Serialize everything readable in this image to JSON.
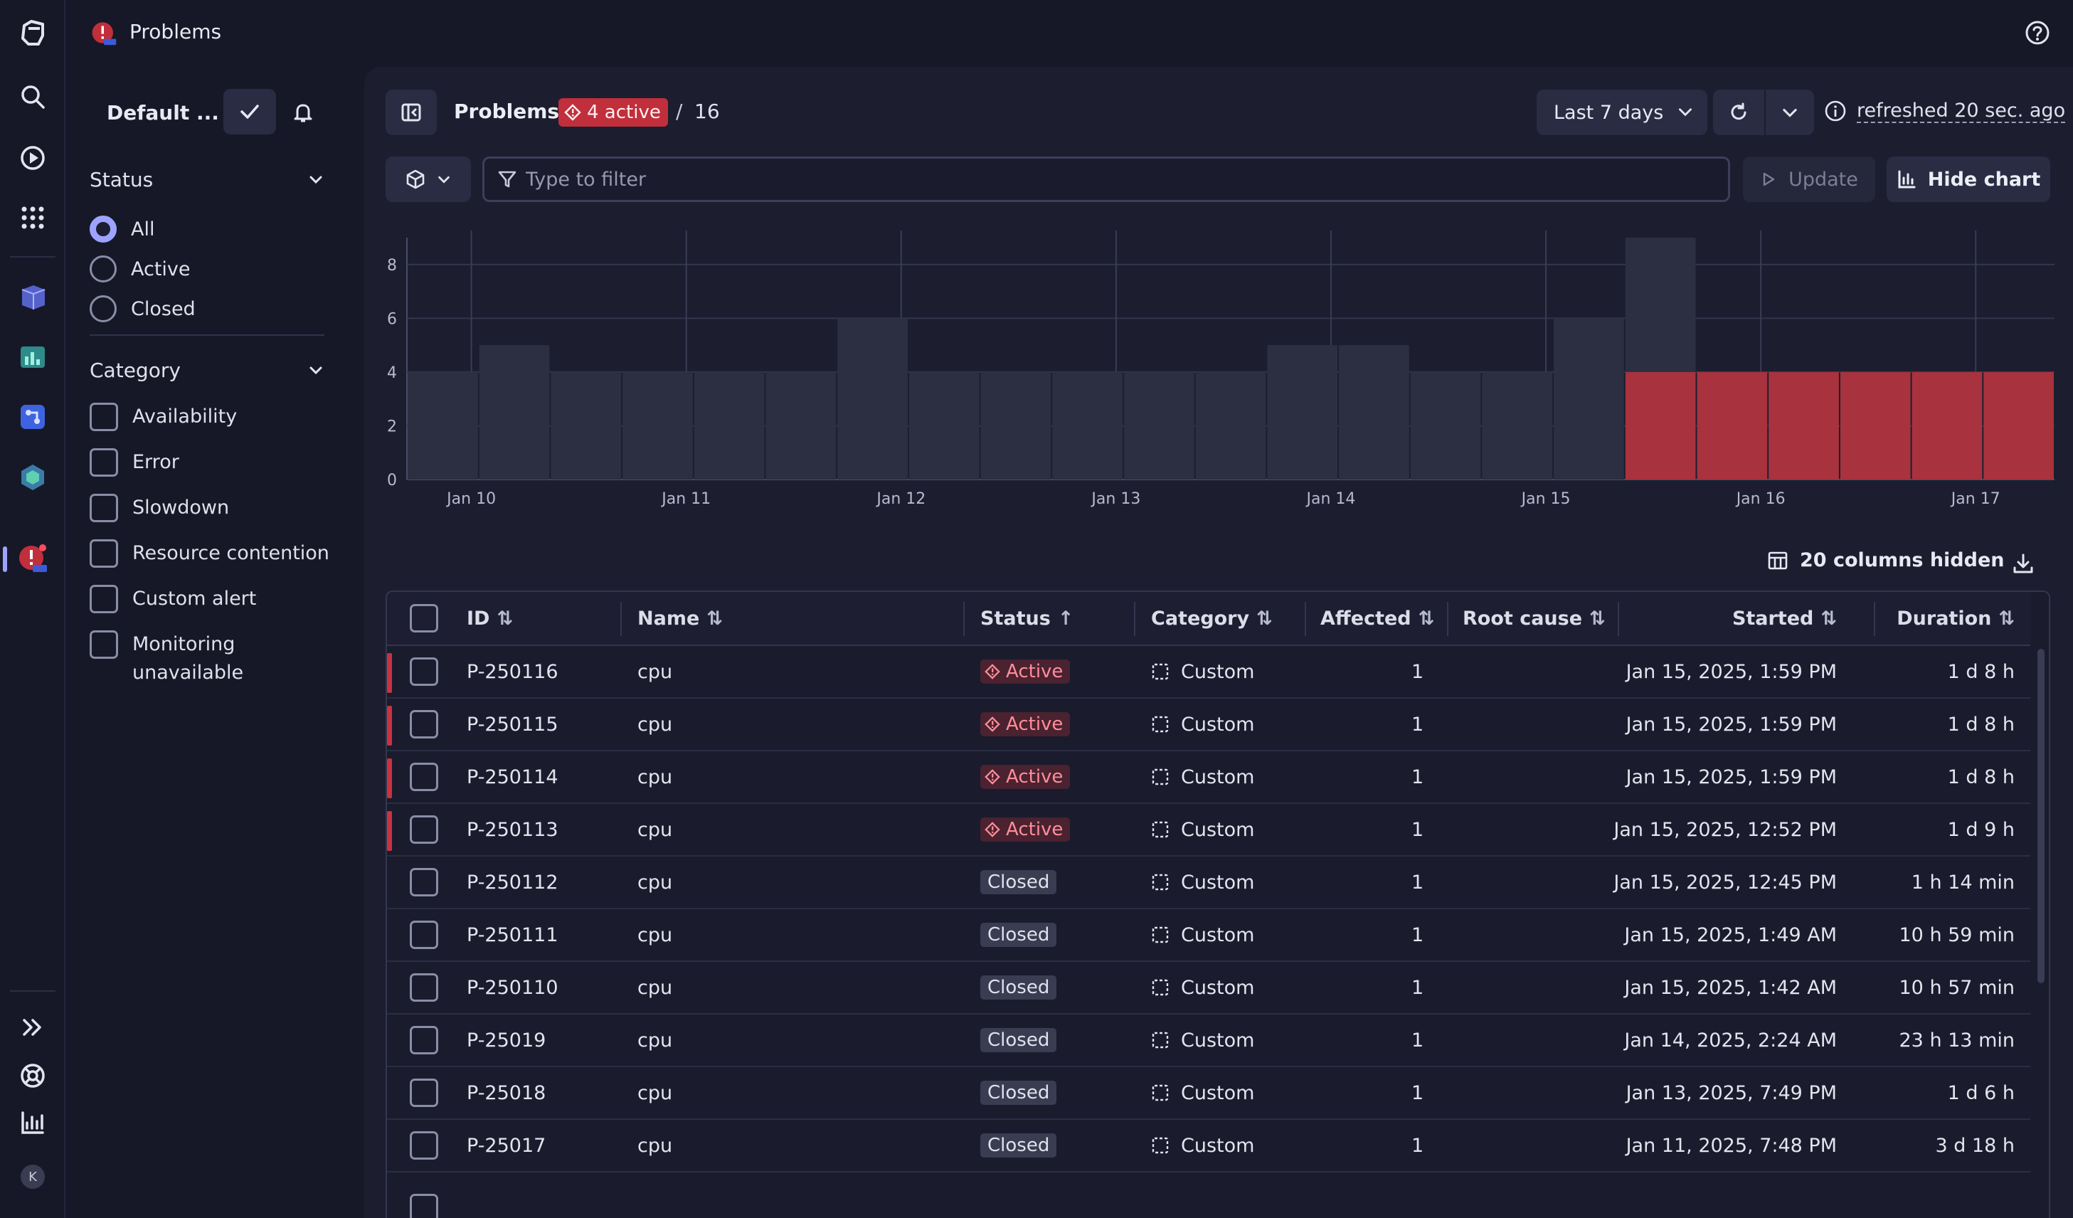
{
  "app": {
    "title": "Problems"
  },
  "sidebar": {
    "preset": "Default ...",
    "status_section": "Status",
    "status_options": [
      "All",
      "Active",
      "Closed"
    ],
    "status_selected": "All",
    "category_section": "Category",
    "category_options": [
      "Availability",
      "Error",
      "Slowdown",
      "Resource contention",
      "Custom alert",
      "Monitoring unavailable"
    ]
  },
  "header": {
    "title": "Problems",
    "active_badge": "4 active",
    "separator": "/",
    "total": "16",
    "timeframe": "Last 7 days",
    "refreshed": "refreshed 20 sec. ago"
  },
  "filter": {
    "placeholder": "Type to filter",
    "update_label": "Update",
    "hide_chart_label": "Hide chart"
  },
  "chart_data": {
    "type": "bar",
    "yticks": [
      0,
      2,
      4,
      6,
      8
    ],
    "ylim": [
      0,
      9
    ],
    "xticks": [
      "Jan 10",
      "Jan 11",
      "Jan 12",
      "Jan 13",
      "Jan 14",
      "Jan 15",
      "Jan 16",
      "Jan 17"
    ],
    "series": [
      {
        "values": [
          4,
          5,
          4,
          4,
          4,
          4,
          6,
          4,
          4,
          4,
          4,
          4,
          5,
          5,
          4,
          4,
          6,
          9,
          4,
          4,
          4,
          4,
          4
        ]
      },
      {
        "values": [
          0,
          0,
          0,
          0,
          0,
          0,
          0,
          0,
          0,
          0,
          0,
          0,
          0,
          0,
          0,
          0,
          0,
          4,
          4,
          4,
          4,
          4,
          4
        ]
      }
    ],
    "colors": {
      "total": "#2c2e42",
      "active": "#a8323e"
    }
  },
  "table": {
    "columns_hidden": "20 columns hidden",
    "headers": [
      "ID",
      "Name",
      "Status",
      "Category",
      "Affected",
      "Root cause",
      "Started",
      "Duration"
    ],
    "rows": [
      {
        "id": "P-250116",
        "name": "cpu",
        "status": "Active",
        "category": "Custom",
        "affected": "1",
        "root_cause": "",
        "started": "Jan 15, 2025, 1:59 PM",
        "duration": "1 d 8 h"
      },
      {
        "id": "P-250115",
        "name": "cpu",
        "status": "Active",
        "category": "Custom",
        "affected": "1",
        "root_cause": "",
        "started": "Jan 15, 2025, 1:59 PM",
        "duration": "1 d 8 h"
      },
      {
        "id": "P-250114",
        "name": "cpu",
        "status": "Active",
        "category": "Custom",
        "affected": "1",
        "root_cause": "",
        "started": "Jan 15, 2025, 1:59 PM",
        "duration": "1 d 8 h"
      },
      {
        "id": "P-250113",
        "name": "cpu",
        "status": "Active",
        "category": "Custom",
        "affected": "1",
        "root_cause": "",
        "started": "Jan 15, 2025, 12:52 PM",
        "duration": "1 d 9 h"
      },
      {
        "id": "P-250112",
        "name": "cpu",
        "status": "Closed",
        "category": "Custom",
        "affected": "1",
        "root_cause": "",
        "started": "Jan 15, 2025, 12:45 PM",
        "duration": "1 h 14 min"
      },
      {
        "id": "P-250111",
        "name": "cpu",
        "status": "Closed",
        "category": "Custom",
        "affected": "1",
        "root_cause": "",
        "started": "Jan 15, 2025, 1:49 AM",
        "duration": "10 h 59 min"
      },
      {
        "id": "P-250110",
        "name": "cpu",
        "status": "Closed",
        "category": "Custom",
        "affected": "1",
        "root_cause": "",
        "started": "Jan 15, 2025, 1:42 AM",
        "duration": "10 h 57 min"
      },
      {
        "id": "P-25019",
        "name": "cpu",
        "status": "Closed",
        "category": "Custom",
        "affected": "1",
        "root_cause": "",
        "started": "Jan 14, 2025, 2:24 AM",
        "duration": "23 h 13 min"
      },
      {
        "id": "P-25018",
        "name": "cpu",
        "status": "Closed",
        "category": "Custom",
        "affected": "1",
        "root_cause": "",
        "started": "Jan 13, 2025, 7:49 PM",
        "duration": "1 d 6 h"
      },
      {
        "id": "P-25017",
        "name": "cpu",
        "status": "Closed",
        "category": "Custom",
        "affected": "1",
        "root_cause": "",
        "started": "Jan 11, 2025, 7:48 PM",
        "duration": "3 d 18 h"
      }
    ]
  },
  "rail": {
    "avatar_initial": "K"
  }
}
